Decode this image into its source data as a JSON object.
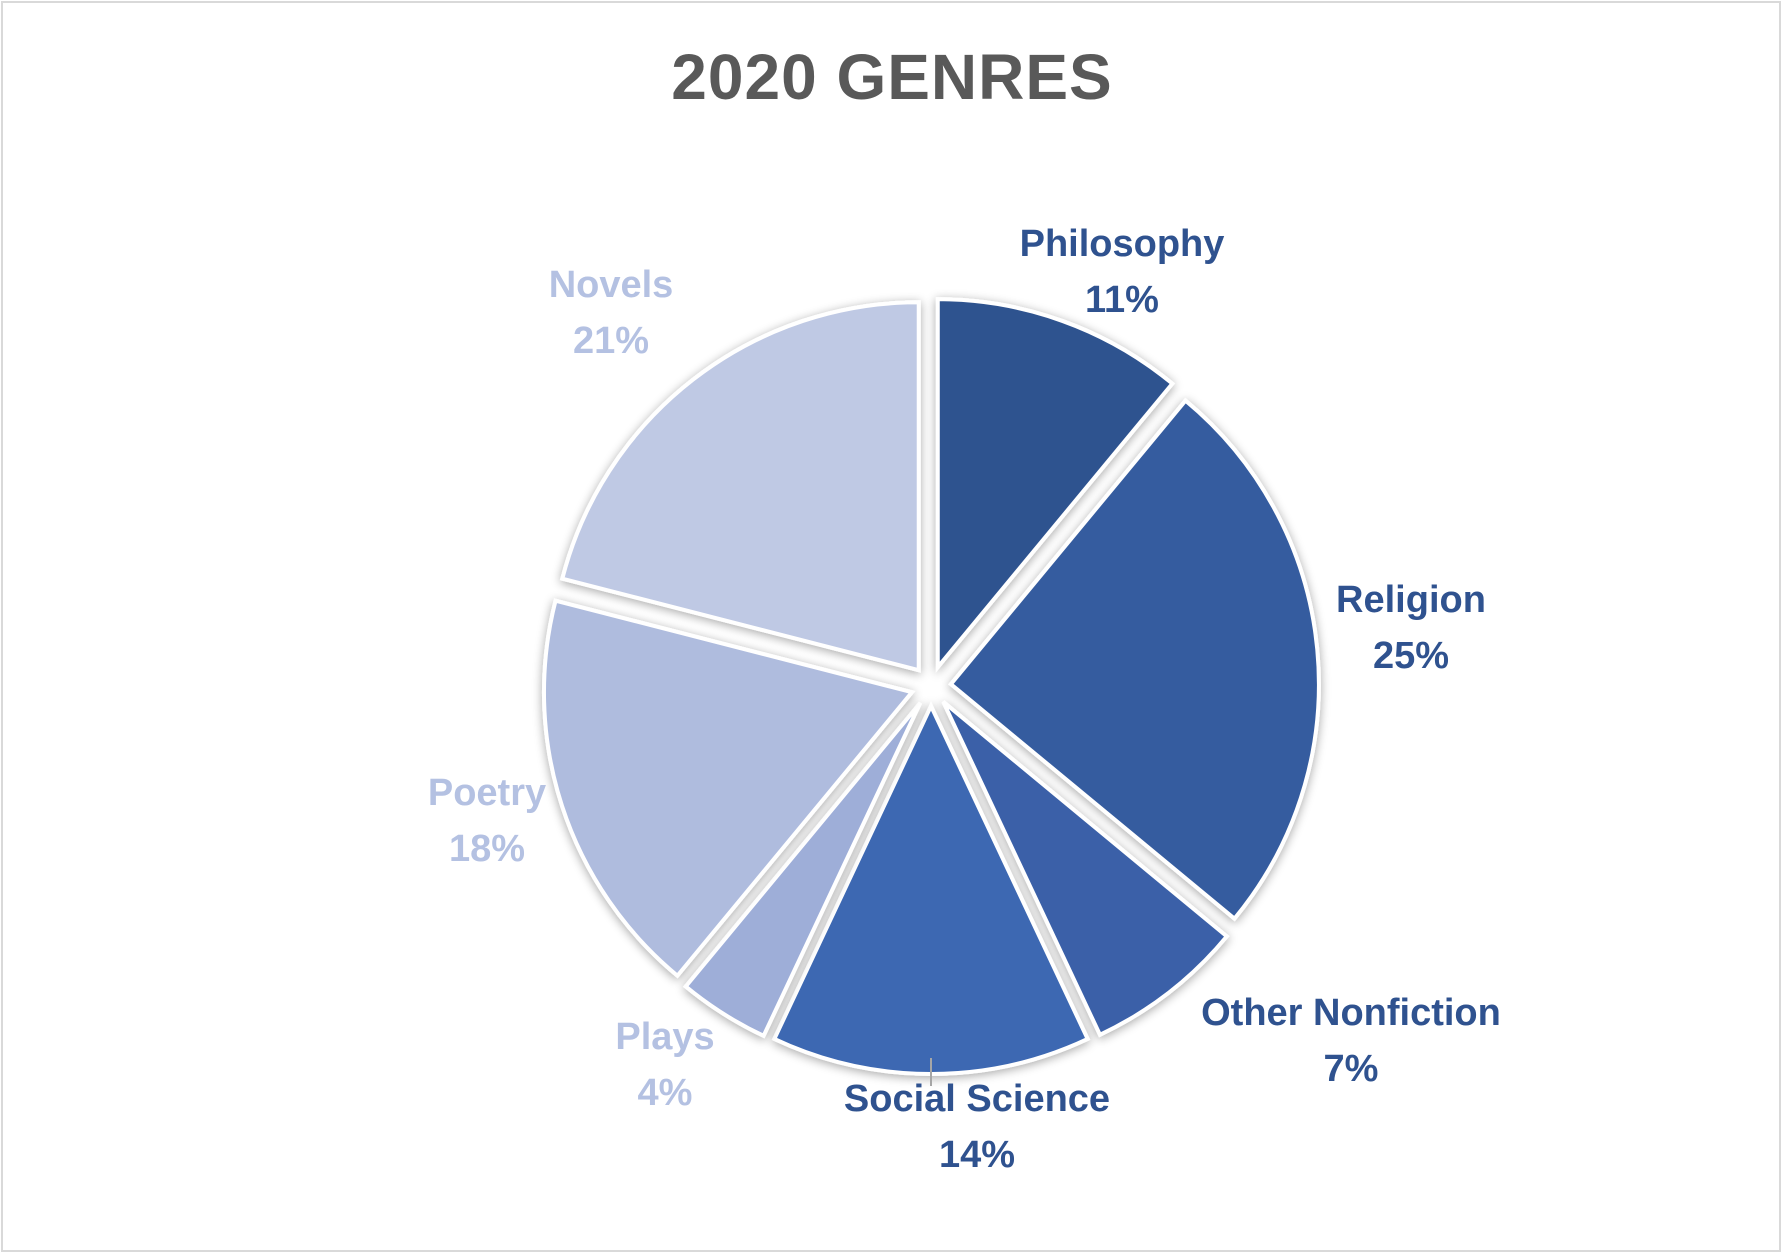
{
  "chart_data": {
    "type": "pie",
    "title": "2020 GENRES",
    "slices": [
      {
        "name": "Philosophy",
        "value": 11,
        "label": "11%",
        "color": "#2f528f"
      },
      {
        "name": "Religion",
        "value": 25,
        "label": "25%",
        "color": "#355c9f"
      },
      {
        "name": "Other Nonfiction",
        "value": 7,
        "label": "7%",
        "color": "#3a61a8"
      },
      {
        "name": "Social Science",
        "value": 14,
        "label": "14%",
        "color": "#3d68b2"
      },
      {
        "name": "Plays",
        "value": 4,
        "label": "4%",
        "color": "#9eaed8"
      },
      {
        "name": "Poetry",
        "value": 18,
        "label": "18%",
        "color": "#afbcde"
      },
      {
        "name": "Novels",
        "value": 21,
        "label": "21%",
        "color": "#bfc9e4"
      }
    ],
    "legend": "none",
    "label_colors": {
      "dark": "#2f528f",
      "light": "#b4c1e2"
    }
  }
}
